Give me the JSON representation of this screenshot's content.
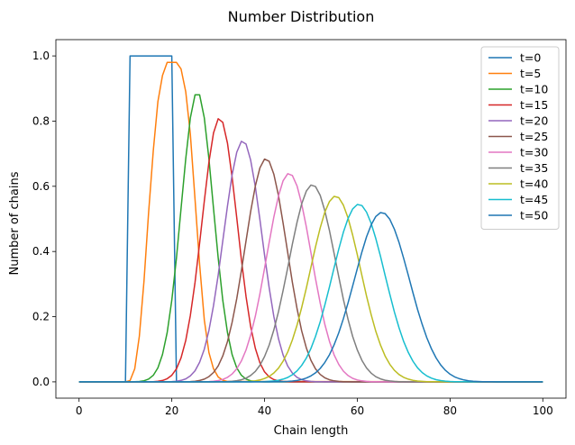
{
  "chart_data": {
    "type": "line",
    "title": "Number Distribution",
    "xlabel": "Chain length",
    "ylabel": "Number of chains",
    "xlim": [
      -5,
      105
    ],
    "ylim": [
      -0.05,
      1.05
    ],
    "xticks": [
      0,
      20,
      40,
      60,
      80,
      100
    ],
    "yticks": [
      0.0,
      0.2,
      0.4,
      0.6,
      0.8,
      1.0
    ],
    "xtick_labels": [
      "0",
      "20",
      "40",
      "60",
      "80",
      "100"
    ],
    "ytick_labels": [
      "0.0",
      "0.2",
      "0.4",
      "0.6",
      "0.8",
      "1.0"
    ],
    "grid": false,
    "legend_position": "top-right",
    "series": [
      {
        "name": "t=0",
        "color": "#1f77b4",
        "x": [
          0,
          10,
          11,
          20,
          21,
          100
        ],
        "y": [
          0,
          0,
          1.0,
          1.0,
          0,
          0
        ]
      },
      {
        "name": "t=5",
        "color": "#ff7f0e",
        "peak_x": 21,
        "peak_y": 0.98,
        "x": [
          0,
          10,
          11,
          12,
          13,
          14,
          15,
          16,
          17,
          18,
          19,
          20,
          21,
          22,
          23,
          24,
          25,
          26,
          27,
          28,
          29,
          30,
          31,
          32,
          100
        ],
        "y": [
          0,
          0,
          0.004,
          0.04,
          0.14,
          0.31,
          0.52,
          0.71,
          0.86,
          0.94,
          0.98,
          0.98,
          0.98,
          0.96,
          0.89,
          0.76,
          0.56,
          0.36,
          0.19,
          0.09,
          0.04,
          0.015,
          0.005,
          0.001,
          0
        ]
      },
      {
        "name": "t=10",
        "color": "#2ca02c",
        "peak_x": 25.5,
        "peak_y": 0.89
      },
      {
        "name": "t=15",
        "color": "#d62728",
        "peak_x": 30.3,
        "peak_y": 0.81
      },
      {
        "name": "t=20",
        "color": "#9467bd",
        "peak_x": 35.3,
        "peak_y": 0.74
      },
      {
        "name": "t=25",
        "color": "#8c564b",
        "peak_x": 40.3,
        "peak_y": 0.685
      },
      {
        "name": "t=30",
        "color": "#e377c2",
        "peak_x": 45.3,
        "peak_y": 0.64
      },
      {
        "name": "t=35",
        "color": "#7f7f7f",
        "peak_x": 50.3,
        "peak_y": 0.605
      },
      {
        "name": "t=40",
        "color": "#bcbd22",
        "peak_x": 55.3,
        "peak_y": 0.57
      },
      {
        "name": "t=45",
        "color": "#17becf",
        "peak_x": 60.3,
        "peak_y": 0.545
      },
      {
        "name": "t=50",
        "color": "#1f77b4",
        "peak_x": 65.3,
        "peak_y": 0.52
      }
    ]
  }
}
